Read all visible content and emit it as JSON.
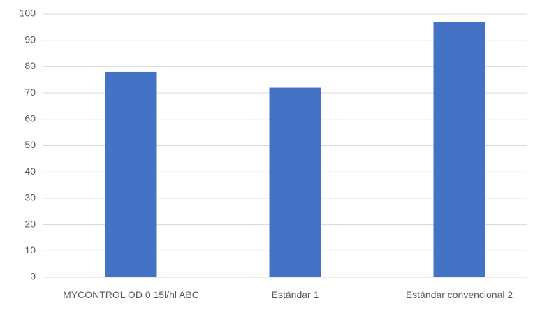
{
  "chart_data": {
    "type": "bar",
    "categories": [
      "MYCONTROL OD 0,15l/hl ABC",
      "Estándar 1",
      "Estándar convencional 2"
    ],
    "values": [
      78,
      72,
      97
    ],
    "color": "#4472c4",
    "ylim": [
      0,
      100
    ],
    "yticks": [
      0,
      10,
      20,
      30,
      40,
      50,
      60,
      70,
      80,
      90,
      100
    ],
    "grid": true
  }
}
